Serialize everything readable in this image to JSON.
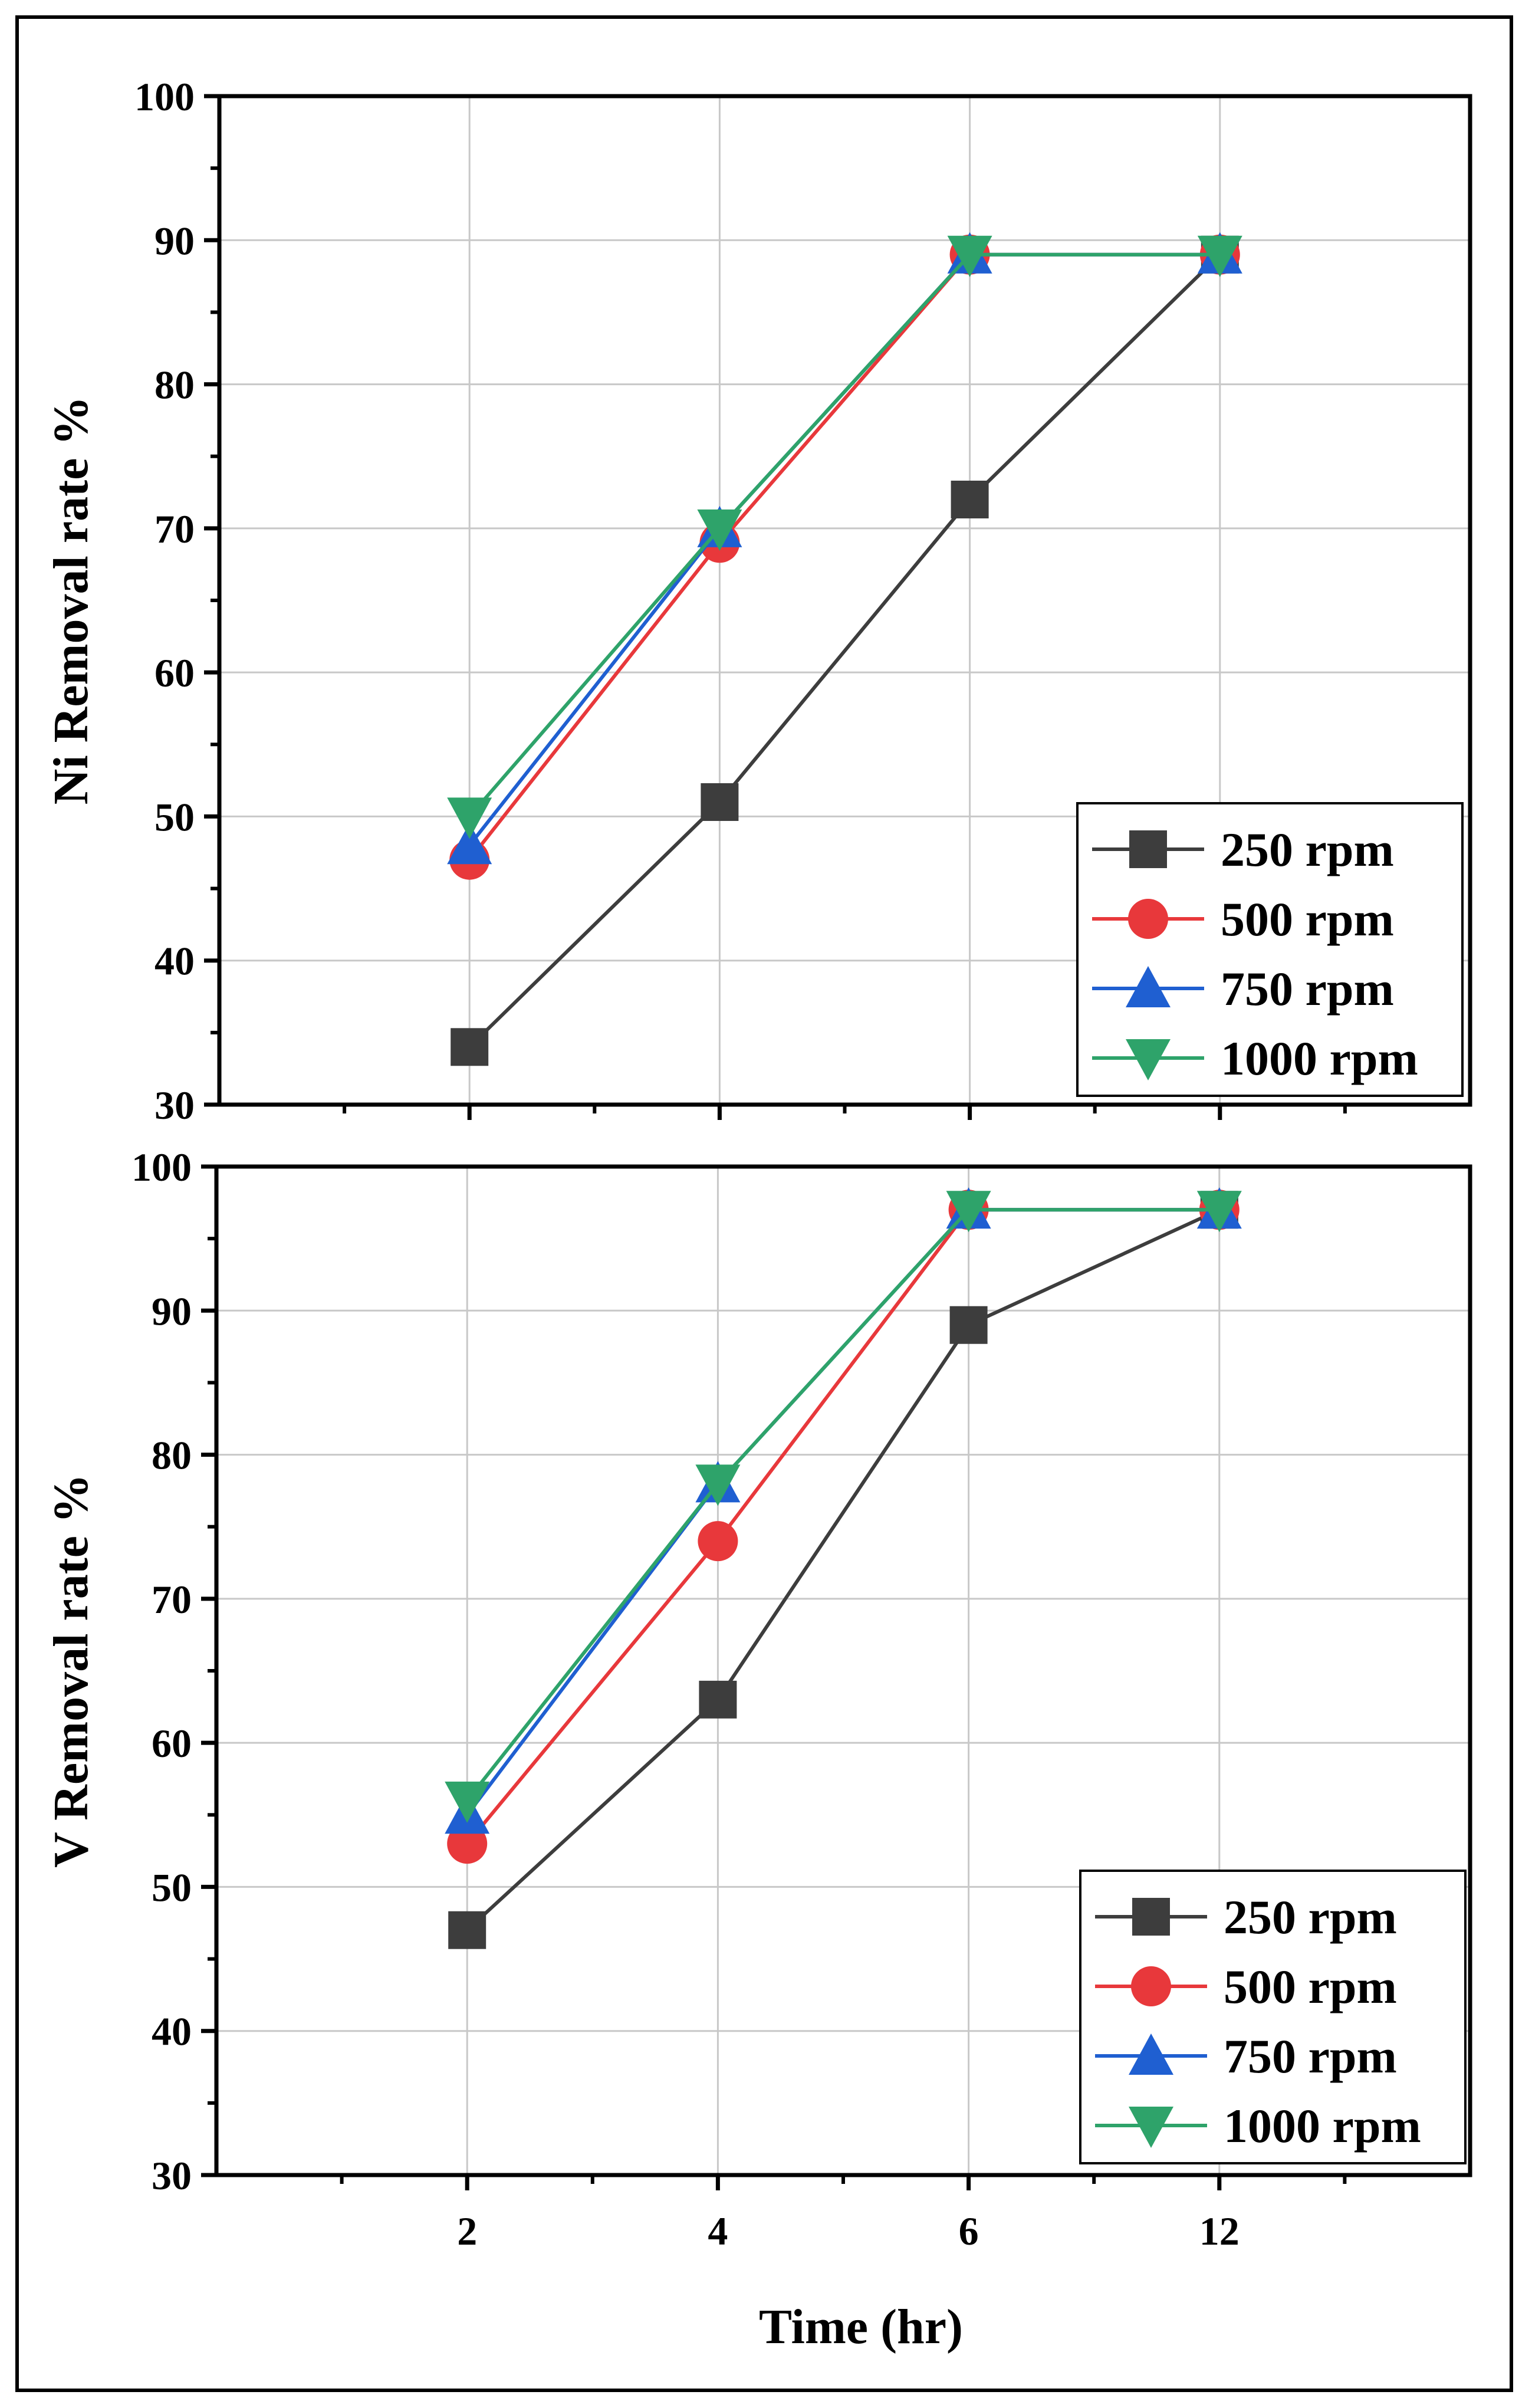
{
  "chart_data": [
    {
      "type": "line",
      "panel": "top",
      "title": "",
      "xlabel": "",
      "ylabel": "Ni Removal rate %",
      "categories": [
        "2",
        "4",
        "6",
        "12"
      ],
      "ylim": [
        30,
        100
      ],
      "yticks": [
        30,
        40,
        50,
        60,
        70,
        80,
        90,
        100
      ],
      "grid": true,
      "legend": "bottom-right",
      "series": [
        {
          "name": "250 rpm",
          "color": "#3d3d3d",
          "marker": "square",
          "values": [
            34,
            51,
            72,
            89
          ]
        },
        {
          "name": "500 rpm",
          "color": "#e8383b",
          "marker": "circle",
          "values": [
            47,
            69,
            89,
            89
          ]
        },
        {
          "name": "750 rpm",
          "color": "#1f5fd1",
          "marker": "triangle-up",
          "values": [
            48,
            70,
            89,
            89
          ]
        },
        {
          "name": "1000 rpm",
          "color": "#2ea36a",
          "marker": "triangle-down",
          "values": [
            50,
            70,
            89,
            89
          ]
        }
      ]
    },
    {
      "type": "line",
      "panel": "bottom",
      "title": "",
      "xlabel": "Time (hr)",
      "ylabel": "V Removal rate %",
      "categories": [
        "2",
        "4",
        "6",
        "12"
      ],
      "ylim": [
        30,
        100
      ],
      "yticks": [
        30,
        40,
        50,
        60,
        70,
        80,
        90,
        100
      ],
      "grid": true,
      "legend": "bottom-right",
      "series": [
        {
          "name": "250 rpm",
          "color": "#3d3d3d",
          "marker": "square",
          "values": [
            47,
            63,
            89,
            97
          ]
        },
        {
          "name": "500 rpm",
          "color": "#e8383b",
          "marker": "circle",
          "values": [
            53,
            74,
            97,
            97
          ]
        },
        {
          "name": "750 rpm",
          "color": "#1f5fd1",
          "marker": "triangle-up",
          "values": [
            55,
            78,
            97,
            97
          ]
        },
        {
          "name": "1000 rpm",
          "color": "#2ea36a",
          "marker": "triangle-down",
          "values": [
            56,
            78,
            97,
            97
          ]
        }
      ]
    }
  ]
}
